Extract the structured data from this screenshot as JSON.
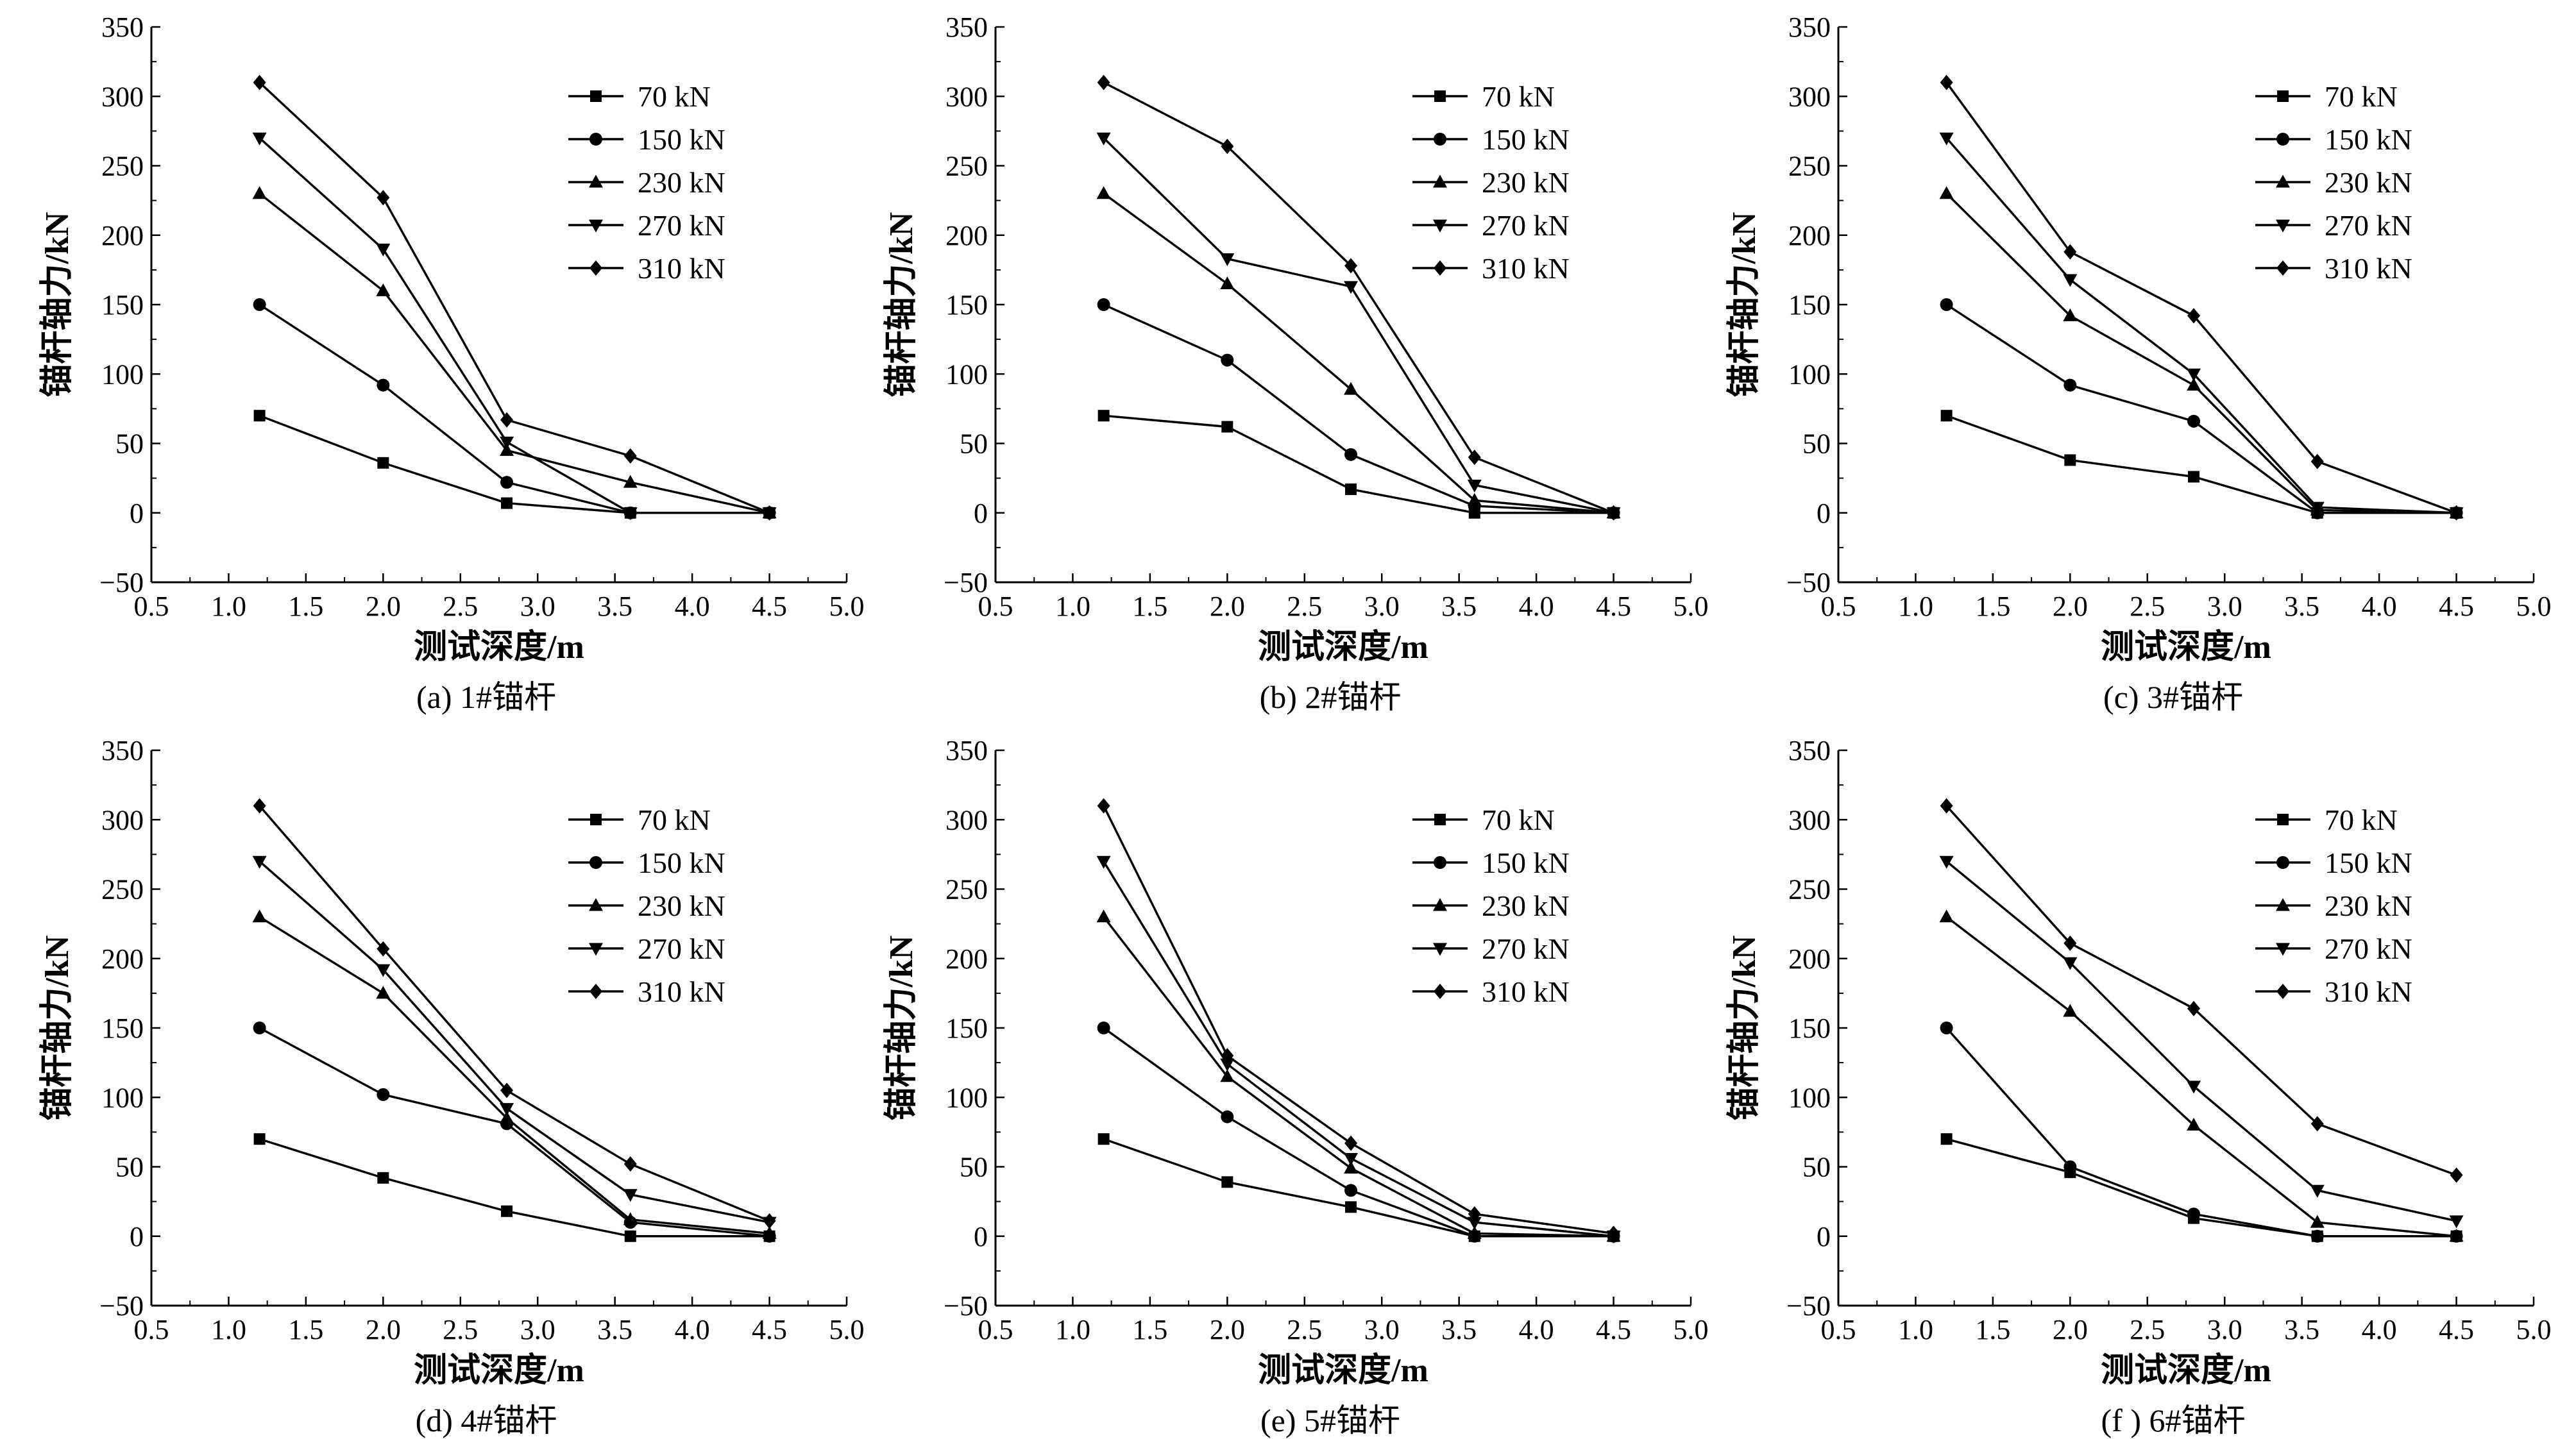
{
  "figure": {
    "xlabel": "测试深度/m",
    "ylabel": "锚杆轴力/kN",
    "xticks": [
      "0.5",
      "1.0",
      "1.5",
      "2.0",
      "2.5",
      "3.0",
      "3.5",
      "4.0",
      "4.5",
      "5.0"
    ],
    "yticks": [
      "−50",
      "0",
      "50",
      "100",
      "150",
      "200",
      "250",
      "300",
      "350"
    ],
    "legend": [
      "70 kN",
      "150 kN",
      "230 kN",
      "270 kN",
      "310 kN"
    ]
  },
  "chart_data": [
    {
      "type": "line",
      "caption": "(a) 1#锚杆",
      "xlabel": "测试深度/m",
      "ylabel": "锚杆轴力/kN",
      "xlim": [
        0.5,
        5.0
      ],
      "ylim": [
        -50,
        350
      ],
      "grid": false,
      "legend_position": "top-right",
      "x": [
        1.2,
        2.0,
        2.8,
        3.6,
        4.5
      ],
      "series": [
        {
          "name": "70 kN",
          "marker": "square",
          "values": [
            70,
            36,
            7,
            0,
            0
          ]
        },
        {
          "name": "150 kN",
          "marker": "circle",
          "values": [
            150,
            92,
            22,
            0,
            0
          ]
        },
        {
          "name": "230 kN",
          "marker": "triangle-up",
          "values": [
            230,
            160,
            45,
            22,
            0
          ]
        },
        {
          "name": "270 kN",
          "marker": "triangle-down",
          "values": [
            270,
            190,
            51,
            0,
            0
          ]
        },
        {
          "name": "310 kN",
          "marker": "diamond",
          "values": [
            310,
            227,
            67,
            41,
            0
          ]
        }
      ]
    },
    {
      "type": "line",
      "caption": "(b) 2#锚杆",
      "xlabel": "测试深度/m",
      "ylabel": "锚杆轴力/kN",
      "xlim": [
        0.5,
        5.0
      ],
      "ylim": [
        -50,
        350
      ],
      "grid": false,
      "legend_position": "top-right",
      "x": [
        1.2,
        2.0,
        2.8,
        3.6,
        4.5
      ],
      "series": [
        {
          "name": "70 kN",
          "marker": "square",
          "values": [
            70,
            62,
            17,
            0,
            0
          ]
        },
        {
          "name": "150 kN",
          "marker": "circle",
          "values": [
            150,
            110,
            42,
            5,
            0
          ]
        },
        {
          "name": "230 kN",
          "marker": "triangle-up",
          "values": [
            230,
            165,
            89,
            9,
            0
          ]
        },
        {
          "name": "270 kN",
          "marker": "triangle-down",
          "values": [
            270,
            183,
            163,
            20,
            0
          ]
        },
        {
          "name": "310 kN",
          "marker": "diamond",
          "values": [
            310,
            264,
            178,
            40,
            0
          ]
        }
      ]
    },
    {
      "type": "line",
      "caption": "(c) 3#锚杆",
      "xlabel": "测试深度/m",
      "ylabel": "锚杆轴力/kN",
      "xlim": [
        0.5,
        5.0
      ],
      "ylim": [
        -50,
        350
      ],
      "grid": false,
      "legend_position": "top-right",
      "x": [
        1.2,
        2.0,
        2.8,
        3.6,
        4.5
      ],
      "series": [
        {
          "name": "70 kN",
          "marker": "square",
          "values": [
            70,
            38,
            26,
            0,
            0
          ]
        },
        {
          "name": "150 kN",
          "marker": "circle",
          "values": [
            150,
            92,
            66,
            0,
            0
          ]
        },
        {
          "name": "230 kN",
          "marker": "triangle-up",
          "values": [
            230,
            142,
            92,
            2,
            0
          ]
        },
        {
          "name": "270 kN",
          "marker": "triangle-down",
          "values": [
            270,
            168,
            100,
            4,
            0
          ]
        },
        {
          "name": "310 kN",
          "marker": "diamond",
          "values": [
            310,
            188,
            142,
            37,
            0
          ]
        }
      ]
    },
    {
      "type": "line",
      "caption": "(d) 4#锚杆",
      "xlabel": "测试深度/m",
      "ylabel": "锚杆轴力/kN",
      "xlim": [
        0.5,
        5.0
      ],
      "ylim": [
        -50,
        350
      ],
      "grid": false,
      "legend_position": "top-right",
      "x": [
        1.2,
        2.0,
        2.8,
        3.6,
        4.5
      ],
      "series": [
        {
          "name": "70 kN",
          "marker": "square",
          "values": [
            70,
            42,
            18,
            0,
            0
          ]
        },
        {
          "name": "150 kN",
          "marker": "circle",
          "values": [
            150,
            102,
            81,
            10,
            0
          ]
        },
        {
          "name": "230 kN",
          "marker": "triangle-up",
          "values": [
            230,
            175,
            85,
            12,
            2
          ]
        },
        {
          "name": "270 kN",
          "marker": "triangle-down",
          "values": [
            270,
            192,
            92,
            30,
            10
          ]
        },
        {
          "name": "310 kN",
          "marker": "diamond",
          "values": [
            310,
            207,
            105,
            52,
            11
          ]
        }
      ]
    },
    {
      "type": "line",
      "caption": "(e) 5#锚杆",
      "xlabel": "测试深度/m",
      "ylabel": "锚杆轴力/kN",
      "xlim": [
        0.5,
        5.0
      ],
      "ylim": [
        -50,
        350
      ],
      "grid": false,
      "legend_position": "top-right",
      "x": [
        1.2,
        2.0,
        2.8,
        3.6,
        4.5
      ],
      "series": [
        {
          "name": "70 kN",
          "marker": "square",
          "values": [
            70,
            39,
            21,
            0,
            0
          ]
        },
        {
          "name": "150 kN",
          "marker": "circle",
          "values": [
            150,
            86,
            33,
            0,
            0
          ]
        },
        {
          "name": "230 kN",
          "marker": "triangle-up",
          "values": [
            230,
            115,
            49,
            2,
            0
          ]
        },
        {
          "name": "270 kN",
          "marker": "triangle-down",
          "values": [
            270,
            124,
            56,
            10,
            0
          ]
        },
        {
          "name": "310 kN",
          "marker": "diamond",
          "values": [
            310,
            130,
            67,
            16,
            2
          ]
        }
      ]
    },
    {
      "type": "line",
      "caption": "(f ) 6#锚杆",
      "xlabel": "测试深度/m",
      "ylabel": "锚杆轴力/kN",
      "xlim": [
        0.5,
        5.0
      ],
      "ylim": [
        -50,
        350
      ],
      "grid": false,
      "legend_position": "top-right",
      "x": [
        1.2,
        2.0,
        2.8,
        3.6,
        4.5
      ],
      "series": [
        {
          "name": "70 kN",
          "marker": "square",
          "values": [
            70,
            46,
            13,
            0,
            0
          ]
        },
        {
          "name": "150 kN",
          "marker": "circle",
          "values": [
            150,
            50,
            16,
            0,
            0
          ]
        },
        {
          "name": "230 kN",
          "marker": "triangle-up",
          "values": [
            230,
            162,
            80,
            10,
            0
          ]
        },
        {
          "name": "270 kN",
          "marker": "triangle-down",
          "values": [
            270,
            197,
            108,
            33,
            11
          ]
        },
        {
          "name": "310 kN",
          "marker": "diamond",
          "values": [
            310,
            211,
            164,
            81,
            44
          ]
        }
      ]
    }
  ]
}
